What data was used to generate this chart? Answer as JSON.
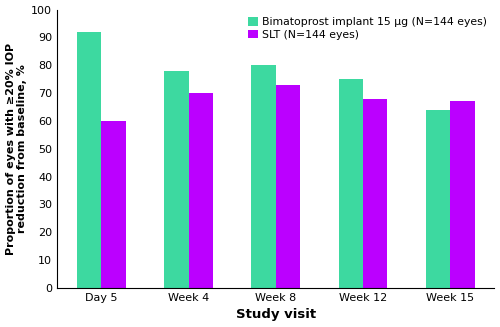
{
  "categories": [
    "Day 5",
    "Week 4",
    "Week 8",
    "Week 12",
    "Week 15"
  ],
  "bimatoprost_values": [
    92,
    78,
    80,
    75,
    64
  ],
  "slt_values": [
    60,
    70,
    73,
    68,
    67
  ],
  "bimatoprost_color": "#3DD9A0",
  "slt_color": "#BB00FF",
  "ylabel": "Proportion of eyes with ≥20% IOP\nreduction from baseline, %",
  "xlabel": "Study visit",
  "legend_bimatoprost": "Bimatoprost implant 15 μg (N=144 eyes)",
  "legend_slt": "SLT (N=144 eyes)",
  "ylim": [
    0,
    100
  ],
  "yticks": [
    0,
    10,
    20,
    30,
    40,
    50,
    60,
    70,
    80,
    90,
    100
  ],
  "bar_width": 0.28,
  "background_color": "#ffffff",
  "axis_fontsize": 8.5,
  "tick_fontsize": 8,
  "legend_fontsize": 7.8,
  "xlabel_fontsize": 9.5,
  "ylabel_fontsize": 8.0
}
